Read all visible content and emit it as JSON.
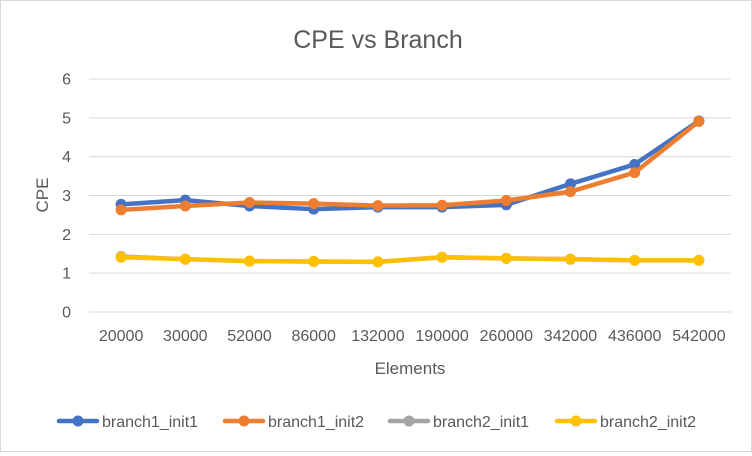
{
  "chart_data": {
    "type": "line",
    "title": "CPE vs Branch",
    "xlabel": "Elements",
    "ylabel": "CPE",
    "categories": [
      "20000",
      "30000",
      "52000",
      "86000",
      "132000",
      "190000",
      "260000",
      "342000",
      "436000",
      "542000"
    ],
    "ylim": [
      0,
      6
    ],
    "yticks": [
      "0",
      "1",
      "2",
      "3",
      "4",
      "5",
      "6"
    ],
    "grid": true,
    "legend_position": "bottom",
    "series": [
      {
        "name": "branch1_init1",
        "color": "#4472C4",
        "values": [
          2.77,
          2.88,
          2.73,
          2.65,
          2.7,
          2.7,
          2.76,
          3.3,
          3.8,
          4.92
        ]
      },
      {
        "name": "branch1_init2",
        "color": "#ED7D31",
        "values": [
          2.63,
          2.73,
          2.82,
          2.79,
          2.74,
          2.75,
          2.87,
          3.1,
          3.59,
          4.91
        ]
      },
      {
        "name": "branch2_init1",
        "color": "#A5A5A5",
        "values": [
          1.43,
          1.36,
          1.31,
          1.3,
          1.29,
          1.41,
          1.38,
          1.36,
          1.33,
          1.33
        ]
      },
      {
        "name": "branch2_init2",
        "color": "#FFC000",
        "values": [
          1.41,
          1.36,
          1.31,
          1.3,
          1.29,
          1.41,
          1.38,
          1.36,
          1.33,
          1.33
        ]
      }
    ]
  }
}
